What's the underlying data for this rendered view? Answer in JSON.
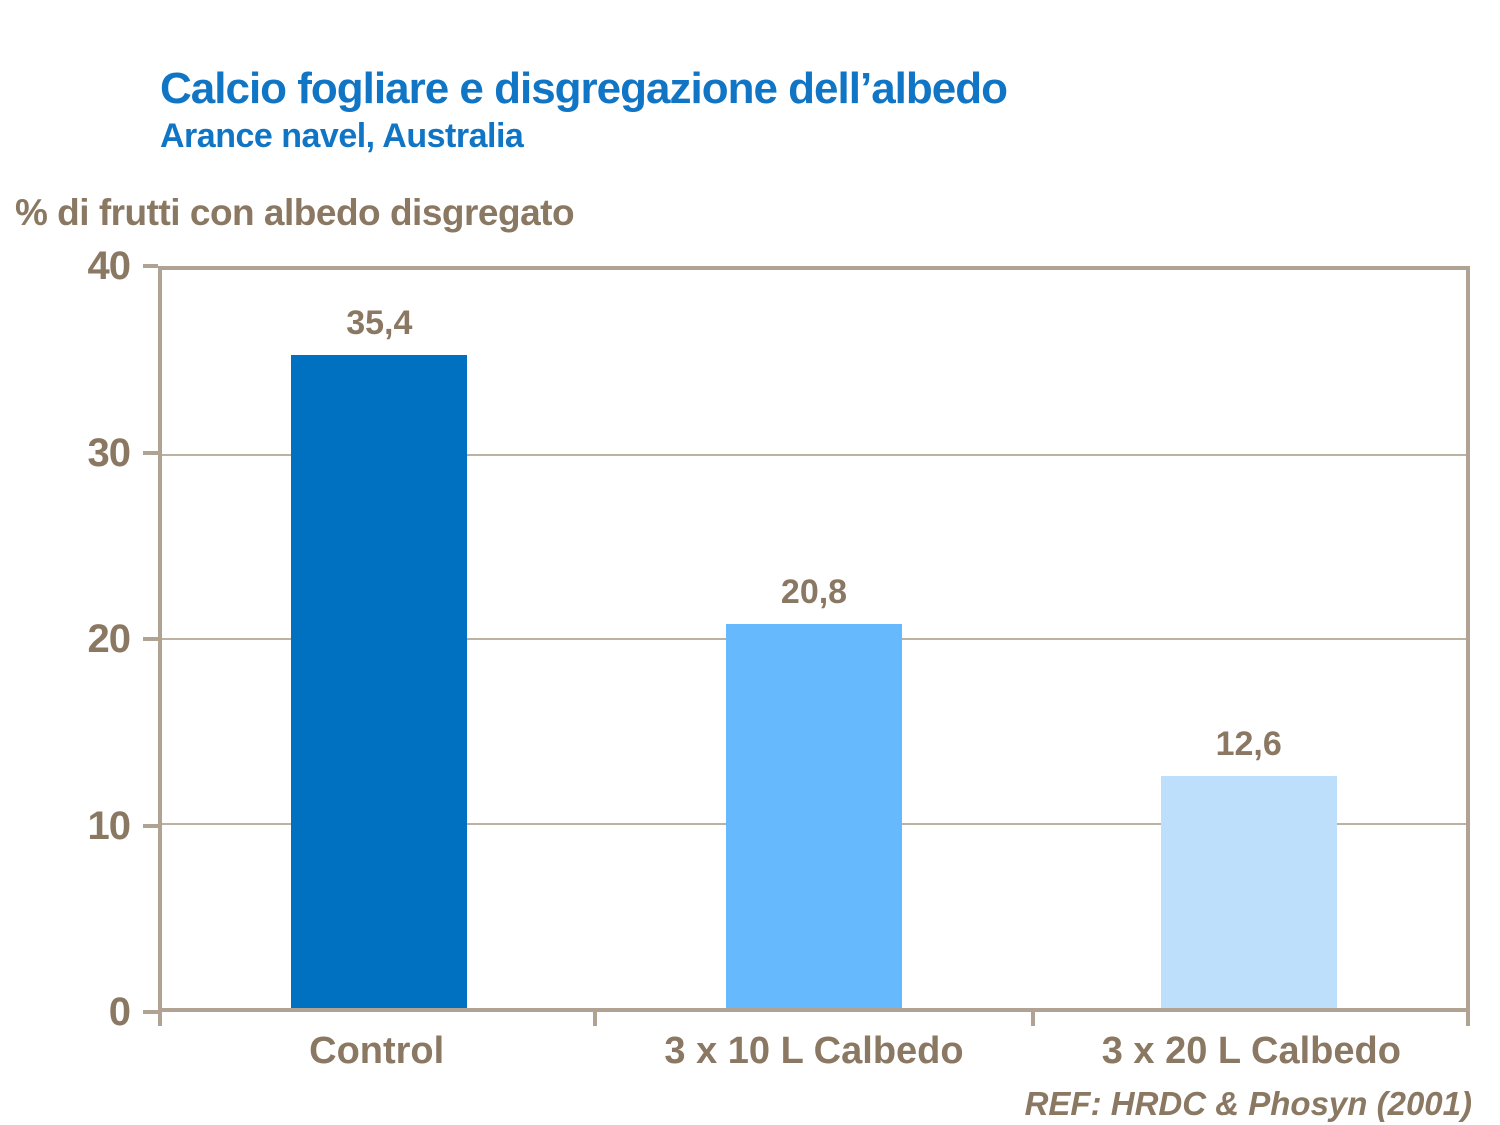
{
  "header": {
    "title": "Calcio fogliare e disgregazione dell’albedo",
    "subtitle": "Arance navel, Australia",
    "title_color": "#1175C5"
  },
  "footer": {
    "ref": "REF: HRDC & Phosyn (2001)"
  },
  "colors": {
    "text_brown": "#8A7862",
    "axis_tan": "#B1A393",
    "gridline_tan": "#BDB1A2",
    "background": "#FFFFFF"
  },
  "chart_data": {
    "type": "bar",
    "title": "Calcio fogliare e disgregazione dell’albedo",
    "subtitle": "Arance navel, Australia",
    "ylabel": "% di frutti con albedo disgregato",
    "xlabel": "",
    "categories": [
      "Control",
      "3 x 10 L Calbedo",
      "3 x 20 L Calbedo"
    ],
    "values": [
      35.4,
      20.8,
      12.6
    ],
    "value_labels": [
      "35,4",
      "20,8",
      "12,6"
    ],
    "bar_colors": [
      "#0070C0",
      "#65B9FC",
      "#BDDFFC"
    ],
    "ylim": [
      0,
      40
    ],
    "yticks": [
      0,
      10,
      20,
      30,
      40
    ],
    "ytick_labels": [
      "0",
      "10",
      "20",
      "30",
      "40"
    ],
    "grid": true,
    "legend": false
  }
}
